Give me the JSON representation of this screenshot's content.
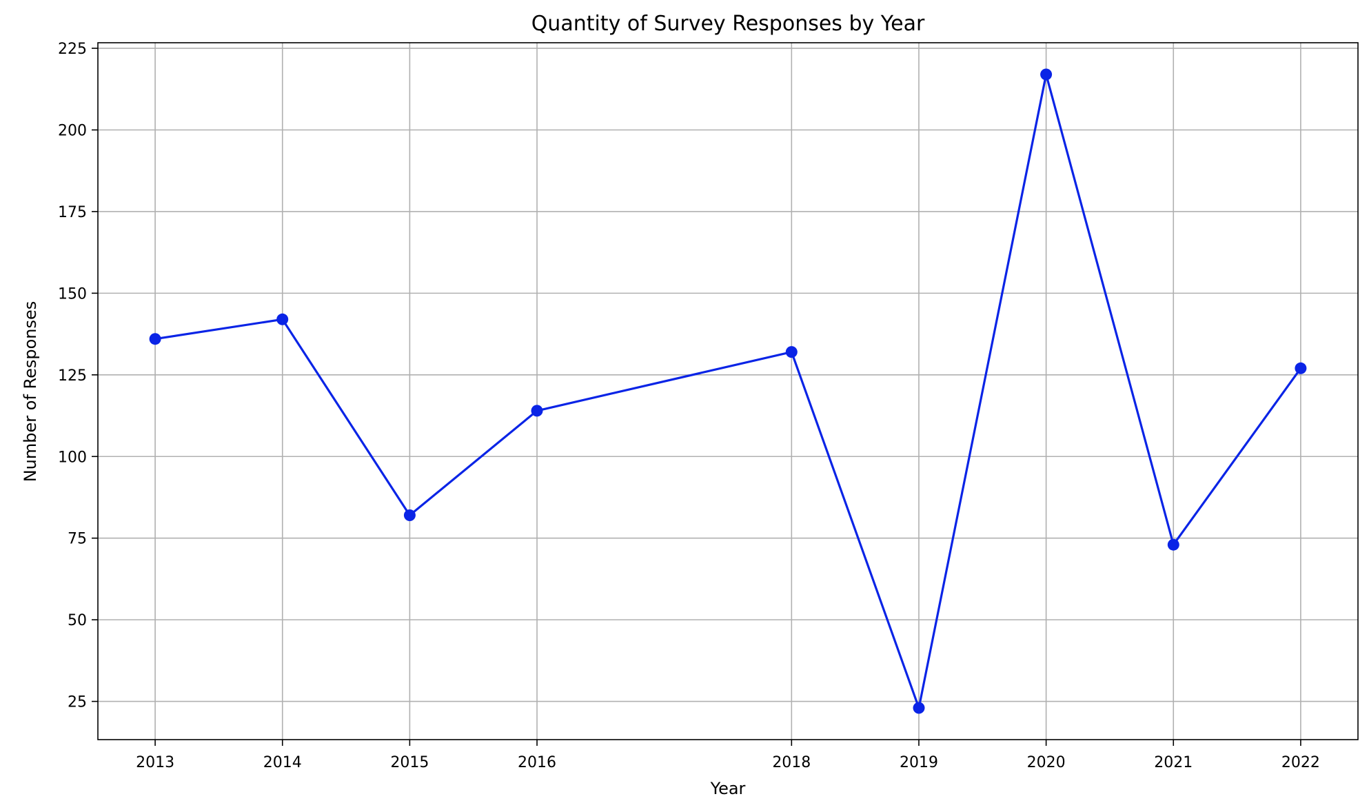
{
  "chart_data": {
    "type": "line",
    "title": "Quantity of Survey Responses by Year",
    "xlabel": "Year",
    "ylabel": "Number of Responses",
    "x": [
      2013,
      2014,
      2015,
      2016,
      2018,
      2019,
      2020,
      2021,
      2022
    ],
    "series": [
      {
        "values": [
          136,
          142,
          82,
          114,
          132,
          23,
          217,
          73,
          127
        ],
        "color": "#0a24e6",
        "marker": "circle"
      }
    ],
    "xticks": [
      "2013",
      "2014",
      "2015",
      "2016",
      "2018",
      "2019",
      "2020",
      "2021",
      "2022"
    ],
    "yticks": [
      "25",
      "50",
      "75",
      "100",
      "125",
      "150",
      "175",
      "200",
      "225"
    ],
    "xlim": [
      2012.55,
      2022.45
    ],
    "ylim": [
      13.3,
      226.7
    ],
    "grid": true,
    "grid_color": "#b0b0b0",
    "axis_color": "#000000"
  }
}
